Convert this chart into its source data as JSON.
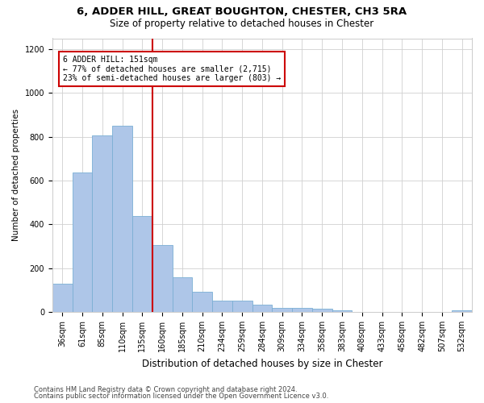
{
  "title_line1": "6, ADDER HILL, GREAT BOUGHTON, CHESTER, CH3 5RA",
  "title_line2": "Size of property relative to detached houses in Chester",
  "xlabel": "Distribution of detached houses by size in Chester",
  "ylabel": "Number of detached properties",
  "categories": [
    "36sqm",
    "61sqm",
    "85sqm",
    "110sqm",
    "135sqm",
    "160sqm",
    "185sqm",
    "210sqm",
    "234sqm",
    "259sqm",
    "284sqm",
    "309sqm",
    "334sqm",
    "358sqm",
    "383sqm",
    "408sqm",
    "433sqm",
    "458sqm",
    "482sqm",
    "507sqm",
    "532sqm"
  ],
  "values": [
    130,
    638,
    805,
    850,
    440,
    305,
    158,
    93,
    50,
    50,
    35,
    18,
    18,
    15,
    8,
    0,
    0,
    0,
    0,
    0,
    9
  ],
  "bar_color": "#aec6e8",
  "bar_edgecolor": "#7bafd4",
  "vline_x_index": 4.5,
  "vline_color": "#cc0000",
  "annotation_text": "6 ADDER HILL: 151sqm\n← 77% of detached houses are smaller (2,715)\n23% of semi-detached houses are larger (803) →",
  "annotation_box_color": "#ffffff",
  "annotation_box_edgecolor": "#cc0000",
  "ylim": [
    0,
    1250
  ],
  "yticks": [
    0,
    200,
    400,
    600,
    800,
    1000,
    1200
  ],
  "footnote_line1": "Contains HM Land Registry data © Crown copyright and database right 2024.",
  "footnote_line2": "Contains public sector information licensed under the Open Government Licence v3.0.",
  "background_color": "#ffffff",
  "grid_color": "#d0d0d0",
  "title1_fontsize": 9.5,
  "title2_fontsize": 8.5,
  "xlabel_fontsize": 8.5,
  "ylabel_fontsize": 7.5,
  "tick_fontsize": 7,
  "annotation_fontsize": 7,
  "footnote_fontsize": 6
}
